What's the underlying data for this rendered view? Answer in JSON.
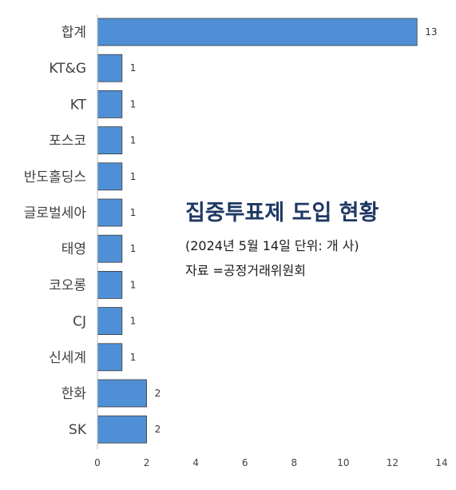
{
  "chart_data": {
    "type": "bar",
    "orientation": "horizontal",
    "title": "집중투표제 도입 현황",
    "subtitle": "(2024년 5월 14일 단위: 개 사)",
    "source": "자료 =공정거래위원회",
    "categories": [
      "합계",
      "KT&G",
      "KT",
      "포스코",
      "반도홀딩스",
      "글로벌세아",
      "태영",
      "코오롱",
      "CJ",
      "신세계",
      "한화",
      "SK"
    ],
    "values": [
      13,
      1,
      1,
      1,
      1,
      1,
      1,
      1,
      1,
      1,
      2,
      2
    ],
    "xlim": [
      0,
      14
    ],
    "xticks": [
      0,
      2,
      4,
      6,
      8,
      10,
      12,
      14
    ],
    "grid": false,
    "legend": "none",
    "bar_color": "#4f8fd6",
    "bar_stroke": "#3a3a3a"
  }
}
